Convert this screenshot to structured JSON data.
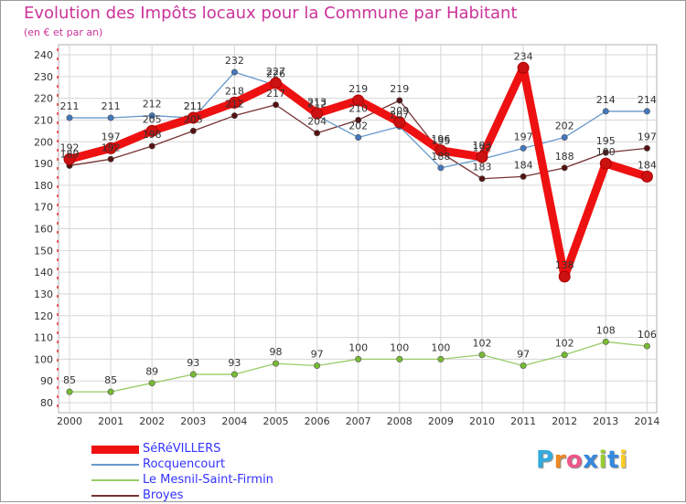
{
  "chart_data": {
    "type": "line",
    "title": "Evolution des Impôts locaux pour la Commune par Habitant",
    "subtitle": "(en € et par an)",
    "x": [
      "2000",
      "2001",
      "2002",
      "2003",
      "2004",
      "2005",
      "2006",
      "2007",
      "2008",
      "2009",
      "2010",
      "2011",
      "2012",
      "2013",
      "2014"
    ],
    "ylim": [
      80,
      240
    ],
    "yticks": [
      "80",
      "90",
      "100",
      "110",
      "120",
      "130",
      "140",
      "150",
      "160",
      "170",
      "180",
      "190",
      "200",
      "210",
      "220",
      "230",
      "240"
    ],
    "grid": true,
    "series": [
      {
        "name": "SéRéVILLERS",
        "color": "#ee1111",
        "marker": "#cc1111",
        "values": [
          192,
          197,
          205,
          211,
          218,
          227,
          213,
          219,
          209,
          196,
          193,
          234,
          138,
          190,
          184
        ],
        "labels": [
          "192",
          "197",
          "205",
          "211",
          "218",
          "227",
          "213",
          "219",
          "209",
          "196",
          "193",
          "234",
          "138",
          "190",
          "184"
        ]
      },
      {
        "name": "Rocquencourt",
        "color": "#6699cc",
        "marker": "#4477bb",
        "values": [
          211,
          211,
          212,
          211,
          232,
          226,
          212,
          202,
          207,
          188,
          192,
          197,
          202,
          214,
          214
        ],
        "labels": [
          "211",
          "211",
          "212",
          "211",
          "232",
          "226",
          "212",
          "202",
          "207",
          "188",
          "192",
          "197",
          "202",
          "214",
          "214"
        ]
      },
      {
        "name": "Le Mesnil-Saint-Firmin",
        "color": "#99cc66",
        "marker": "#77bb33",
        "values": [
          85,
          85,
          89,
          93,
          93,
          98,
          97,
          100,
          100,
          100,
          102,
          97,
          102,
          108,
          106
        ],
        "labels": [
          "85",
          "85",
          "89",
          "93",
          "93",
          "98",
          "97",
          "100",
          "100",
          "100",
          "102",
          "97",
          "102",
          "108",
          "106"
        ]
      },
      {
        "name": "Broyes",
        "color": "#773333",
        "marker": "#551111",
        "values": [
          189,
          192,
          198,
          205,
          212,
          217,
          204,
          210,
          219,
          195,
          183,
          184,
          188,
          195,
          197
        ],
        "labels": [
          "189",
          "192",
          "198",
          "205",
          "212",
          "217",
          "204",
          "210",
          "219",
          "195",
          "183",
          "184",
          "188",
          "195",
          "197"
        ]
      }
    ]
  },
  "brand": {
    "letters": [
      "P",
      "r",
      "o",
      "x",
      "i",
      "t",
      "i"
    ],
    "colors": [
      "#33aadd",
      "#ee8822",
      "#ee5588",
      "#3388dd",
      "#99cc33",
      "#3388dd",
      "#ffcc22"
    ]
  }
}
